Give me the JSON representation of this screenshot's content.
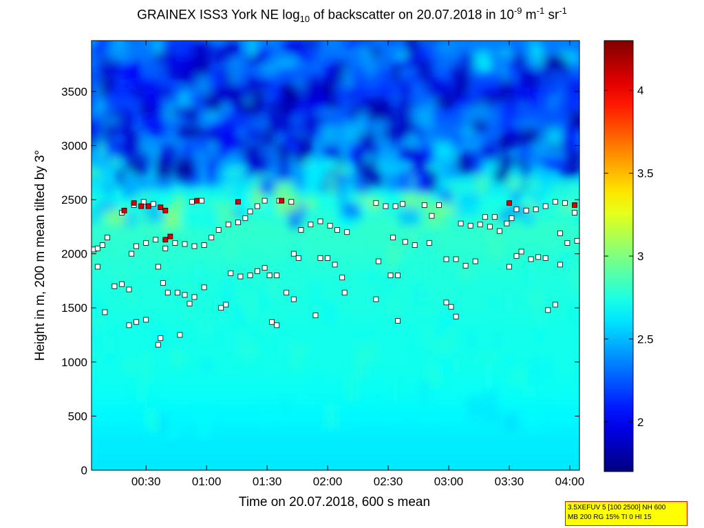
{
  "title": {
    "prefix": "GRAINEX ISS3 York NE log",
    "sub": "10",
    "middle": " of backscatter on 20.07.2018 in 10",
    "sup1": "-9",
    "unit1": " m",
    "sup2": "-1",
    "unit2": " sr",
    "sup3": "-1"
  },
  "info_box": {
    "line1": "3.5XEFUV 5 [100 2500] NH 600",
    "line2": "MB 200 RG 15% TI 0 HI 15"
  },
  "chart_data": {
    "type": "heatmap",
    "xlabel": "Time on 20.07.2018, 600 s mean",
    "ylabel": "Height in m, 200 m mean tilted by 3°",
    "xlim_hours": [
      0.05,
      4.08
    ],
    "ylim": [
      0,
      3970
    ],
    "x_ticks": [
      {
        "label": "00:30",
        "hours": 0.5
      },
      {
        "label": "01:00",
        "hours": 1.0
      },
      {
        "label": "01:30",
        "hours": 1.5
      },
      {
        "label": "02:00",
        "hours": 2.0
      },
      {
        "label": "02:30",
        "hours": 2.5
      },
      {
        "label": "03:00",
        "hours": 3.0
      },
      {
        "label": "03:30",
        "hours": 3.5
      },
      {
        "label": "04:00",
        "hours": 4.0
      }
    ],
    "y_ticks": [
      0,
      500,
      1000,
      1500,
      2000,
      2500,
      3000,
      3500
    ],
    "colorbar": {
      "range": [
        1.7,
        4.3
      ],
      "ticks": [
        "2",
        "2.5",
        "3",
        "3.5",
        "4"
      ],
      "tick_values": [
        2,
        2.5,
        3,
        3.5,
        4
      ],
      "colormap": "jet"
    },
    "backscatter_profile": {
      "heights": [
        0,
        250,
        500,
        750,
        1000,
        1250,
        1500,
        1750,
        2000,
        2250,
        2500,
        2750,
        3000,
        3250,
        3500,
        3750,
        3970
      ],
      "values": [
        2.62,
        2.63,
        2.66,
        2.7,
        2.72,
        2.72,
        2.74,
        2.75,
        2.78,
        2.8,
        2.72,
        2.55,
        2.4,
        2.25,
        2.15,
        2.3,
        2.35
      ]
    },
    "series": [
      {
        "marker": "white-square",
        "points": [
          {
            "x": 0.07,
            "y": 2040
          },
          {
            "x": 0.1,
            "y": 2050
          },
          {
            "x": 0.14,
            "y": 2080
          },
          {
            "x": 0.18,
            "y": 2150
          },
          {
            "x": 0.1,
            "y": 1880
          },
          {
            "x": 0.16,
            "y": 1460
          },
          {
            "x": 0.24,
            "y": 1700
          },
          {
            "x": 0.3,
            "y": 1720
          },
          {
            "x": 0.36,
            "y": 1670
          },
          {
            "x": 0.38,
            "y": 2000
          },
          {
            "x": 0.42,
            "y": 2070
          },
          {
            "x": 0.5,
            "y": 2100
          },
          {
            "x": 0.58,
            "y": 2130
          },
          {
            "x": 0.36,
            "y": 1340
          },
          {
            "x": 0.42,
            "y": 1370
          },
          {
            "x": 0.5,
            "y": 1390
          },
          {
            "x": 0.3,
            "y": 2380
          },
          {
            "x": 0.4,
            "y": 2450
          },
          {
            "x": 0.48,
            "y": 2480
          },
          {
            "x": 0.56,
            "y": 2460
          },
          {
            "x": 0.6,
            "y": 1160
          },
          {
            "x": 0.62,
            "y": 1220
          },
          {
            "x": 0.6,
            "y": 1880
          },
          {
            "x": 0.64,
            "y": 1730
          },
          {
            "x": 0.68,
            "y": 1640
          },
          {
            "x": 0.76,
            "y": 1640
          },
          {
            "x": 0.82,
            "y": 1620
          },
          {
            "x": 0.9,
            "y": 1600
          },
          {
            "x": 0.98,
            "y": 1690
          },
          {
            "x": 0.78,
            "y": 1250
          },
          {
            "x": 0.86,
            "y": 1540
          },
          {
            "x": 0.66,
            "y": 2050
          },
          {
            "x": 0.74,
            "y": 2100
          },
          {
            "x": 0.82,
            "y": 2090
          },
          {
            "x": 0.9,
            "y": 2070
          },
          {
            "x": 0.98,
            "y": 2080
          },
          {
            "x": 1.04,
            "y": 2150
          },
          {
            "x": 1.1,
            "y": 2220
          },
          {
            "x": 1.18,
            "y": 2270
          },
          {
            "x": 1.26,
            "y": 2290
          },
          {
            "x": 1.32,
            "y": 2330
          },
          {
            "x": 0.88,
            "y": 2480
          },
          {
            "x": 0.96,
            "y": 2490
          },
          {
            "x": 1.12,
            "y": 1500
          },
          {
            "x": 1.16,
            "y": 1530
          },
          {
            "x": 1.2,
            "y": 1820
          },
          {
            "x": 1.28,
            "y": 1790
          },
          {
            "x": 1.36,
            "y": 1800
          },
          {
            "x": 1.42,
            "y": 1840
          },
          {
            "x": 1.48,
            "y": 1870
          },
          {
            "x": 1.52,
            "y": 1800
          },
          {
            "x": 1.58,
            "y": 1800
          },
          {
            "x": 1.54,
            "y": 1370
          },
          {
            "x": 1.58,
            "y": 1340
          },
          {
            "x": 1.36,
            "y": 2390
          },
          {
            "x": 1.42,
            "y": 2440
          },
          {
            "x": 1.48,
            "y": 2490
          },
          {
            "x": 1.6,
            "y": 2490
          },
          {
            "x": 1.7,
            "y": 2480
          },
          {
            "x": 1.66,
            "y": 1640
          },
          {
            "x": 1.72,
            "y": 1580
          },
          {
            "x": 1.72,
            "y": 2000
          },
          {
            "x": 1.76,
            "y": 1960
          },
          {
            "x": 1.78,
            "y": 2220
          },
          {
            "x": 1.86,
            "y": 2270
          },
          {
            "x": 1.94,
            "y": 2300
          },
          {
            "x": 2.02,
            "y": 2260
          },
          {
            "x": 2.08,
            "y": 2220
          },
          {
            "x": 2.16,
            "y": 2200
          },
          {
            "x": 1.9,
            "y": 1430
          },
          {
            "x": 1.94,
            "y": 1960
          },
          {
            "x": 2.0,
            "y": 1960
          },
          {
            "x": 2.06,
            "y": 1900
          },
          {
            "x": 2.12,
            "y": 1780
          },
          {
            "x": 2.14,
            "y": 1640
          },
          {
            "x": 2.4,
            "y": 1580
          },
          {
            "x": 2.42,
            "y": 1930
          },
          {
            "x": 2.52,
            "y": 1800
          },
          {
            "x": 2.58,
            "y": 1800
          },
          {
            "x": 2.4,
            "y": 2470
          },
          {
            "x": 2.48,
            "y": 2440
          },
          {
            "x": 2.56,
            "y": 2440
          },
          {
            "x": 2.62,
            "y": 2460
          },
          {
            "x": 2.54,
            "y": 2150
          },
          {
            "x": 2.64,
            "y": 2110
          },
          {
            "x": 2.72,
            "y": 2080
          },
          {
            "x": 2.84,
            "y": 2100
          },
          {
            "x": 2.58,
            "y": 1380
          },
          {
            "x": 2.8,
            "y": 2450
          },
          {
            "x": 2.86,
            "y": 2350
          },
          {
            "x": 2.92,
            "y": 2450
          },
          {
            "x": 2.98,
            "y": 1950
          },
          {
            "x": 3.06,
            "y": 1950
          },
          {
            "x": 3.14,
            "y": 1890
          },
          {
            "x": 3.22,
            "y": 1930
          },
          {
            "x": 2.98,
            "y": 1550
          },
          {
            "x": 3.02,
            "y": 1510
          },
          {
            "x": 3.06,
            "y": 1420
          },
          {
            "x": 3.1,
            "y": 2280
          },
          {
            "x": 3.18,
            "y": 2260
          },
          {
            "x": 3.26,
            "y": 2270
          },
          {
            "x": 3.3,
            "y": 2340
          },
          {
            "x": 3.38,
            "y": 2340
          },
          {
            "x": 3.34,
            "y": 2250
          },
          {
            "x": 3.42,
            "y": 2210
          },
          {
            "x": 3.48,
            "y": 2280
          },
          {
            "x": 3.52,
            "y": 2330
          },
          {
            "x": 3.56,
            "y": 2410
          },
          {
            "x": 3.64,
            "y": 2400
          },
          {
            "x": 3.72,
            "y": 2410
          },
          {
            "x": 3.8,
            "y": 2440
          },
          {
            "x": 3.88,
            "y": 2480
          },
          {
            "x": 3.96,
            "y": 2470
          },
          {
            "x": 4.04,
            "y": 2380
          },
          {
            "x": 3.5,
            "y": 1880
          },
          {
            "x": 3.56,
            "y": 1980
          },
          {
            "x": 3.6,
            "y": 2020
          },
          {
            "x": 3.68,
            "y": 1950
          },
          {
            "x": 3.74,
            "y": 1970
          },
          {
            "x": 3.8,
            "y": 1960
          },
          {
            "x": 3.82,
            "y": 1480
          },
          {
            "x": 3.88,
            "y": 1530
          },
          {
            "x": 3.92,
            "y": 1900
          },
          {
            "x": 3.92,
            "y": 2190
          },
          {
            "x": 3.98,
            "y": 2100
          },
          {
            "x": 4.06,
            "y": 2120
          }
        ]
      },
      {
        "marker": "red-square",
        "points": [
          {
            "x": 0.32,
            "y": 2400
          },
          {
            "x": 0.4,
            "y": 2470
          },
          {
            "x": 0.46,
            "y": 2440
          },
          {
            "x": 0.52,
            "y": 2440
          },
          {
            "x": 0.62,
            "y": 2430
          },
          {
            "x": 0.66,
            "y": 2400
          },
          {
            "x": 0.66,
            "y": 2130
          },
          {
            "x": 0.7,
            "y": 2160
          },
          {
            "x": 0.92,
            "y": 2490
          },
          {
            "x": 1.26,
            "y": 2480
          },
          {
            "x": 1.62,
            "y": 2490
          },
          {
            "x": 3.5,
            "y": 2470
          },
          {
            "x": 4.04,
            "y": 2450
          }
        ]
      }
    ]
  }
}
